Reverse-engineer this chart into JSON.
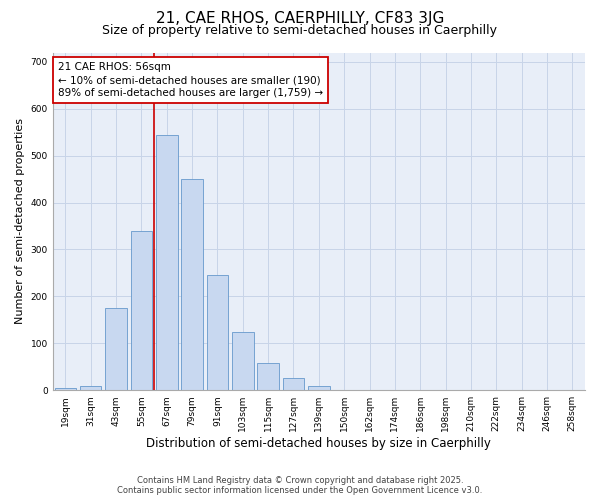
{
  "title": "21, CAE RHOS, CAERPHILLY, CF83 3JG",
  "subtitle": "Size of property relative to semi-detached houses in Caerphilly",
  "xlabel": "Distribution of semi-detached houses by size in Caerphilly",
  "ylabel": "Number of semi-detached properties",
  "footnote": "Contains HM Land Registry data © Crown copyright and database right 2025.\nContains public sector information licensed under the Open Government Licence v3.0.",
  "bar_labels": [
    "19sqm",
    "31sqm",
    "43sqm",
    "55sqm",
    "67sqm",
    "79sqm",
    "91sqm",
    "103sqm",
    "115sqm",
    "127sqm",
    "139sqm",
    "150sqm",
    "162sqm",
    "174sqm",
    "186sqm",
    "198sqm",
    "210sqm",
    "222sqm",
    "234sqm",
    "246sqm",
    "258sqm"
  ],
  "bar_values": [
    4,
    10,
    175,
    340,
    545,
    450,
    245,
    125,
    58,
    27,
    10,
    0,
    0,
    0,
    0,
    0,
    0,
    0,
    0,
    0,
    0
  ],
  "bar_color": "#c8d8f0",
  "bar_edgecolor": "#6699cc",
  "grid_color": "#c8d4e8",
  "bg_color": "#e8eef8",
  "annotation_line1": "21 CAE RHOS: 56sqm",
  "annotation_line2": "← 10% of semi-detached houses are smaller (190)",
  "annotation_line3": "89% of semi-detached houses are larger (1,759) →",
  "vline_xidx": 3.5,
  "vline_color": "#cc0000",
  "ylim": [
    0,
    720
  ],
  "yticks": [
    0,
    100,
    200,
    300,
    400,
    500,
    600,
    700
  ],
  "title_fontsize": 11,
  "subtitle_fontsize": 9,
  "xlabel_fontsize": 8.5,
  "ylabel_fontsize": 8,
  "annotation_fontsize": 7.5,
  "tick_fontsize": 6.5,
  "footnote_fontsize": 6
}
